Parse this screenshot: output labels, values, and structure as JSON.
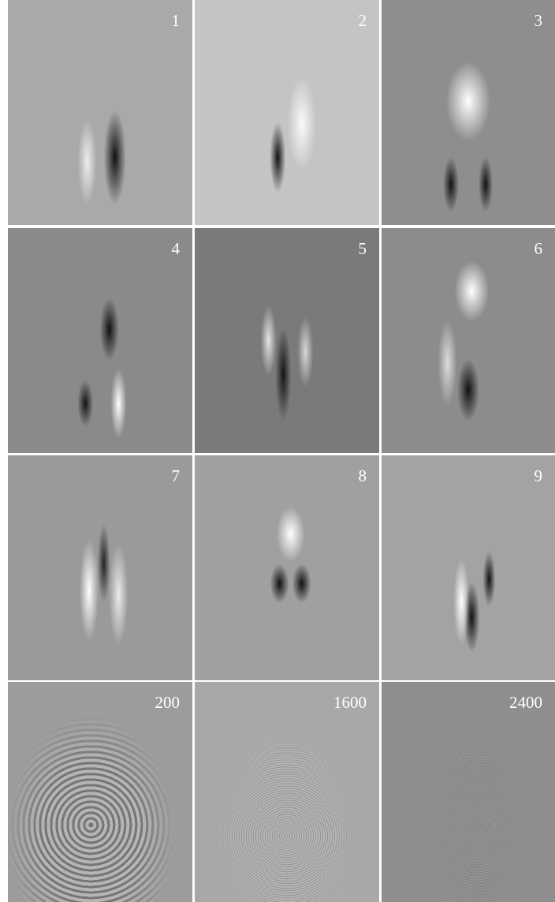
{
  "panels": [
    {
      "label": "1"
    },
    {
      "label": "2"
    },
    {
      "label": "3"
    },
    {
      "label": "4"
    },
    {
      "label": "5"
    },
    {
      "label": "6"
    },
    {
      "label": "7"
    },
    {
      "label": "8"
    },
    {
      "label": "9"
    },
    {
      "label": "200"
    },
    {
      "label": "1600"
    },
    {
      "label": "2400"
    }
  ]
}
